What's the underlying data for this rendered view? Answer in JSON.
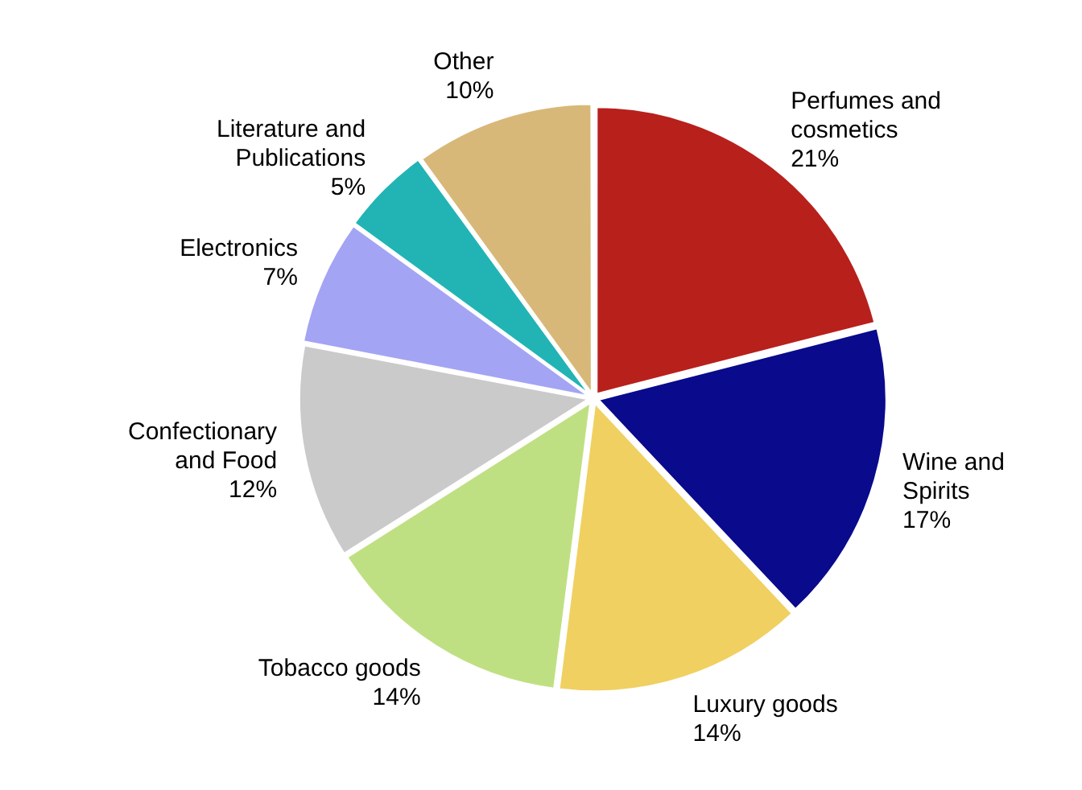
{
  "chart_data": {
    "type": "pie",
    "categories": [
      "Perfumes and cosmetics",
      "Wine and Spirits",
      "Luxury goods",
      "Tobacco goods",
      "Confectionary and Food",
      "Electronics",
      "Literature and Publications",
      "Other"
    ],
    "values": [
      21,
      17,
      14,
      14,
      12,
      7,
      5,
      10
    ],
    "value_labels": [
      "21%",
      "17%",
      "14%",
      "14%",
      "12%",
      "7%",
      "5%",
      "10%"
    ],
    "colors": [
      "#b8201c",
      "#0a0a8c",
      "#f0d060",
      "#bfe082",
      "#cacaca",
      "#a4a4f4",
      "#22b4b4",
      "#d8b878"
    ],
    "legend": false
  }
}
